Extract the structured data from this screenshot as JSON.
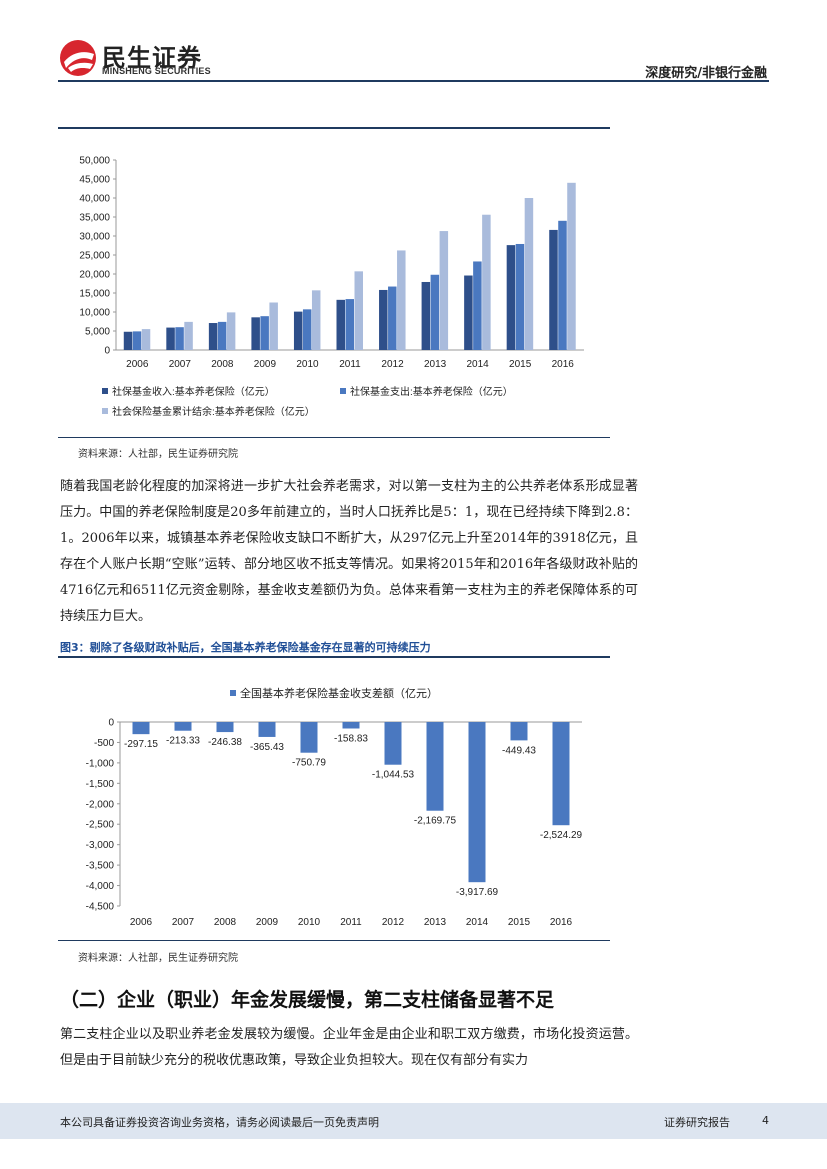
{
  "header": {
    "logo_cn": "民生证券",
    "logo_en": "MINSHENG SECURITIES",
    "category": "深度研究/非银行金融"
  },
  "figure2": {
    "source": "资料来源：人社部，民生证券研究院"
  },
  "paragraph1": "随着我国老龄化程度的加深将进一步扩大社会养老需求，对以第一支柱为主的公共养老体系形成显著压力。中国的养老保险制度是20多年前建立的，当时人口抚养比是5：1，现在已经持续下降到2.8：1。2006年以来，城镇基本养老保险收支缺口不断扩大，从297亿元上升至2014年的3918亿元，且存在个人账户长期“空账”运转、部分地区收不抵支等情况。如果将2015年和2016年各级财政补贴的4716亿元和6511亿元资金剔除，基金收支差额仍为负。总体来看第一支柱为主的养老保障体系的可持续压力巨大。",
  "figure3": {
    "title": "图3：剔除了各级财政补贴后，全国基本养老保险基金存在显著的可持续压力",
    "source": "资料来源：人社部，民生证券研究院"
  },
  "section": {
    "heading": "（二）企业（职业）年金发展缓慢，第二支柱储备显著不足",
    "paragraph": "第二支柱企业以及职业养老金发展较为缓慢。企业年金是由企业和职工双方缴费，市场化投资运营。但是由于目前缺少充分的税收优惠政策，导致企业负担较大。现在仅有部分有实力"
  },
  "footer": {
    "disclaimer": "本公司具备证券投资咨询业务资格，请务必阅读最后一页免责声明",
    "report_type": "证券研究报告",
    "page": "4"
  },
  "chart_data": [
    {
      "type": "bar",
      "categories": [
        "2006",
        "2007",
        "2008",
        "2009",
        "2010",
        "2011",
        "2012",
        "2013",
        "2014",
        "2015",
        "2016"
      ],
      "series": [
        {
          "name": "社保基金收入:基本养老保险（亿元）",
          "color": "#2e4f8a",
          "values": [
            4800,
            5900,
            7100,
            8600,
            10100,
            13200,
            15800,
            17900,
            19600,
            27600,
            31600
          ]
        },
        {
          "name": "社保基金支出:基本养老保险（亿元）",
          "color": "#4a78c0",
          "values": [
            4900,
            6000,
            7400,
            8900,
            10700,
            13400,
            16700,
            19800,
            23300,
            27900,
            34000
          ]
        },
        {
          "name": "社会保险基金累计结余:基本养老保险（亿元）",
          "color": "#a9bbdc",
          "values": [
            5500,
            7400,
            9900,
            12500,
            15700,
            20700,
            26200,
            31300,
            35600,
            40000,
            44000
          ]
        }
      ],
      "ylim": [
        0,
        50000
      ],
      "yticks": [
        "0",
        "5,000",
        "10,000",
        "15,000",
        "20,000",
        "25,000",
        "30,000",
        "35,000",
        "40,000",
        "45,000",
        "50,000"
      ],
      "legend_position": "bottom"
    },
    {
      "type": "bar",
      "categories": [
        "2006",
        "2007",
        "2008",
        "2009",
        "2010",
        "2011",
        "2012",
        "2013",
        "2014",
        "2015",
        "2016"
      ],
      "series": [
        {
          "name": "全国基本养老保险基金收支差额（亿元）",
          "color": "#4a78c0",
          "values": [
            -297.15,
            -213.33,
            -246.38,
            -365.43,
            -750.79,
            -158.83,
            -1044.53,
            -2169.75,
            -3917.69,
            -449.43,
            -2524.29
          ]
        }
      ],
      "data_labels": [
        "-297.15",
        "-213.33",
        "-246.38",
        "-365.43",
        "-750.79",
        "-158.83",
        "-1,044.53",
        "-2,169.75",
        "-3,917.69",
        "-449.43",
        "-2,524.29"
      ],
      "ylim": [
        -4500,
        0
      ],
      "yticks": [
        "0",
        "-500",
        "-1,000",
        "-1,500",
        "-2,000",
        "-2,500",
        "-3,000",
        "-3,500",
        "-4,000",
        "-4,500"
      ],
      "legend_position": "top"
    }
  ]
}
